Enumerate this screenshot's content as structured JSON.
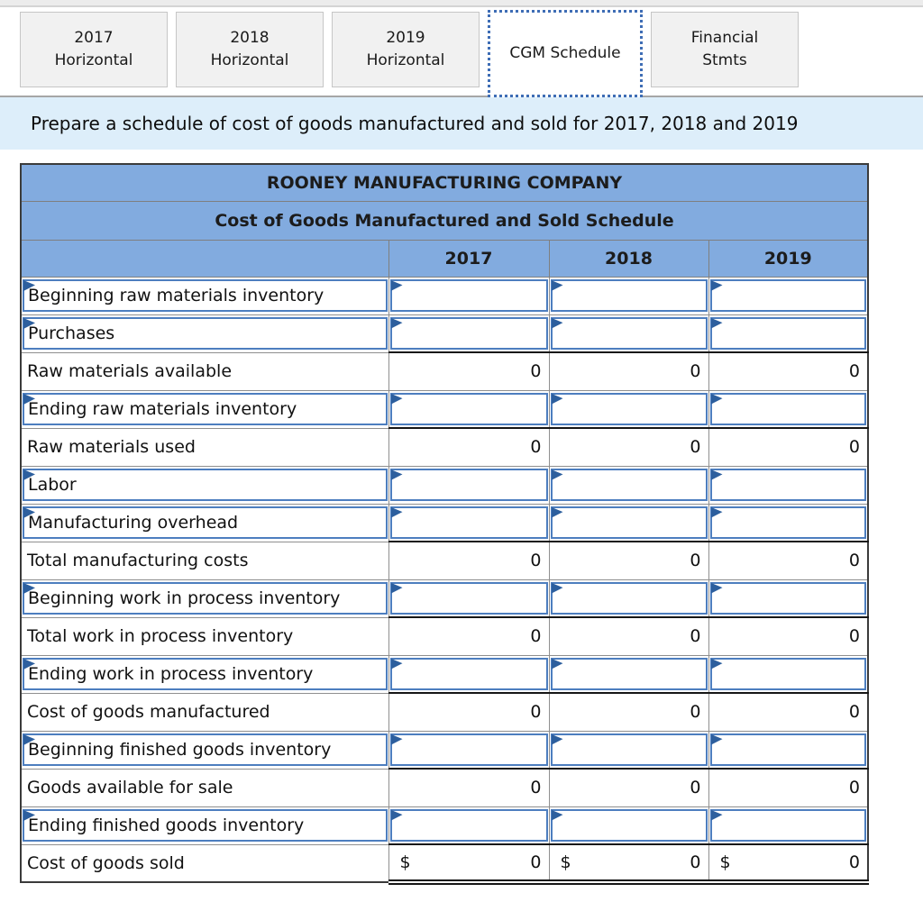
{
  "tabs": [
    {
      "line1": "2017",
      "line2": "Horizontal",
      "active": false
    },
    {
      "line1": "2018",
      "line2": "Horizontal",
      "active": false
    },
    {
      "line1": "2019",
      "line2": "Horizontal",
      "active": false
    },
    {
      "line1": "CGM Schedule",
      "active": true
    },
    {
      "line1": "Financial",
      "line2": "Stmts",
      "active": false
    }
  ],
  "instruction": "Prepare a schedule of cost of goods manufactured and sold for 2017, 2018 and 2019",
  "table": {
    "title": "ROONEY MANUFACTURING COMPANY",
    "subtitle": "Cost of Goods Manufactured and Sold Schedule",
    "columns": [
      "2017",
      "2018",
      "2019"
    ],
    "rows": [
      {
        "label": "Beginning raw materials inventory",
        "type": "input",
        "values": [
          "",
          "",
          ""
        ]
      },
      {
        "label": "Purchases",
        "type": "input",
        "values": [
          "",
          "",
          ""
        ]
      },
      {
        "label": "Raw materials available",
        "type": "calc",
        "values": [
          "0",
          "0",
          "0"
        ]
      },
      {
        "label": "Ending raw materials inventory",
        "type": "input",
        "values": [
          "",
          "",
          ""
        ]
      },
      {
        "label": "Raw materials used",
        "type": "calc",
        "values": [
          "0",
          "0",
          "0"
        ]
      },
      {
        "label": "Labor",
        "type": "input",
        "values": [
          "",
          "",
          ""
        ]
      },
      {
        "label": "Manufacturing overhead",
        "type": "input",
        "values": [
          "",
          "",
          ""
        ]
      },
      {
        "label": "Total manufacturing costs",
        "type": "calc",
        "values": [
          "0",
          "0",
          "0"
        ]
      },
      {
        "label": "Beginning work in process inventory",
        "type": "input",
        "values": [
          "",
          "",
          ""
        ]
      },
      {
        "label": "Total work in process inventory",
        "type": "calc",
        "values": [
          "0",
          "0",
          "0"
        ]
      },
      {
        "label": "Ending work in process inventory",
        "type": "input",
        "values": [
          "",
          "",
          ""
        ]
      },
      {
        "label": "Cost of goods manufactured",
        "type": "calc",
        "values": [
          "0",
          "0",
          "0"
        ]
      },
      {
        "label": "Beginning finished goods inventory",
        "type": "input",
        "values": [
          "",
          "",
          ""
        ]
      },
      {
        "label": "Goods available for sale",
        "type": "calc",
        "values": [
          "0",
          "0",
          "0"
        ]
      },
      {
        "label": "Ending finished goods inventory",
        "type": "input",
        "values": [
          "",
          "",
          ""
        ]
      },
      {
        "label": "Cost of goods sold",
        "type": "total",
        "currency": "$",
        "values": [
          "0",
          "0",
          "0"
        ]
      }
    ]
  },
  "colors": {
    "header_blue": "#82abdf",
    "input_border_blue": "#4d7ebf",
    "flag_blue": "#2d5f9e",
    "active_tab_border": "#3e6db5",
    "instruction_bg": "#ddeefa",
    "tab_bg": "#f1f1f1"
  }
}
